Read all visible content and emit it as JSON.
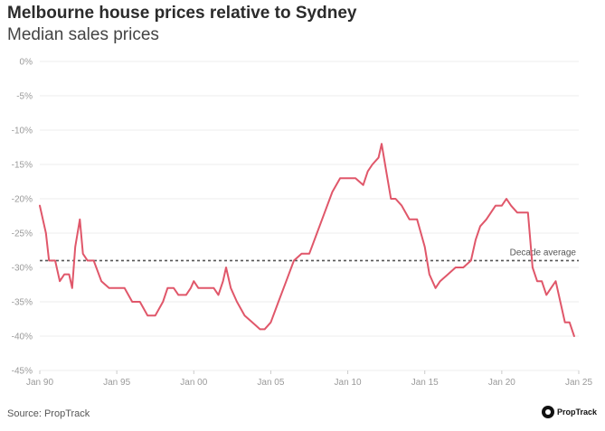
{
  "chart_data": {
    "type": "line",
    "title": "Melbourne house prices relative to Sydney",
    "subtitle": "Median sales prices",
    "xlabel": "",
    "ylabel": "",
    "xlim": [
      1990,
      2025
    ],
    "ylim": [
      -45,
      0
    ],
    "x_ticks": [
      "Jan 90",
      "Jan 95",
      "Jan 00",
      "Jan 05",
      "Jan 10",
      "Jan 15",
      "Jan 20",
      "Jan 25"
    ],
    "y_ticks": [
      "0%",
      "-5%",
      "-10%",
      "-15%",
      "-20%",
      "-25%",
      "-30%",
      "-35%",
      "-40%",
      "-45%"
    ],
    "grid": true,
    "series": [
      {
        "color": "#e0576a",
        "x": [
          1990.0,
          1990.4,
          1990.6,
          1991.0,
          1991.3,
          1991.6,
          1991.9,
          1992.1,
          1992.3,
          1992.6,
          1992.8,
          1993.1,
          1993.5,
          1994.0,
          1994.5,
          1995.0,
          1995.5,
          1996.0,
          1996.5,
          1997.0,
          1997.5,
          1998.0,
          1998.3,
          1998.7,
          1999.0,
          1999.5,
          1999.8,
          2000.0,
          2000.3,
          2000.6,
          2001.0,
          2001.3,
          2001.6,
          2001.9,
          2002.1,
          2002.4,
          2002.8,
          2003.3,
          2003.8,
          2004.3,
          2004.6,
          2005.0,
          2005.5,
          2006.0,
          2006.5,
          2007.0,
          2007.5,
          2008.0,
          2008.5,
          2009.0,
          2009.5,
          2010.0,
          2010.5,
          2011.0,
          2011.3,
          2011.6,
          2012.0,
          2012.2,
          2012.5,
          2012.8,
          2013.1,
          2013.5,
          2014.0,
          2014.5,
          2015.0,
          2015.3,
          2015.7,
          2016.0,
          2016.5,
          2017.0,
          2017.5,
          2018.0,
          2018.3,
          2018.6,
          2019.0,
          2019.3,
          2019.6,
          2020.0,
          2020.3,
          2020.6,
          2021.0,
          2021.3,
          2021.7,
          2022.0,
          2022.3,
          2022.6,
          2022.9,
          2023.2,
          2023.5,
          2023.8,
          2024.1,
          2024.4,
          2024.7
        ],
        "y": [
          -21,
          -25,
          -29,
          -29,
          -32,
          -31,
          -31,
          -33,
          -27,
          -23,
          -28,
          -29,
          -29,
          -32,
          -33,
          -33,
          -33,
          -35,
          -35,
          -37,
          -37,
          -35,
          -33,
          -33,
          -34,
          -34,
          -33,
          -32,
          -33,
          -33,
          -33,
          -33,
          -34,
          -32,
          -30,
          -33,
          -35,
          -37,
          -38,
          -39,
          -39,
          -38,
          -35,
          -32,
          -29,
          -28,
          -28,
          -25,
          -22,
          -19,
          -17,
          -17,
          -17,
          -18,
          -16,
          -15,
          -14,
          -12,
          -16,
          -20,
          -20,
          -21,
          -23,
          -23,
          -27,
          -31,
          -33,
          -32,
          -31,
          -30,
          -30,
          -29,
          -26,
          -24,
          -23,
          -22,
          -21,
          -21,
          -20,
          -21,
          -22,
          -22,
          -22,
          -30,
          -32,
          -32,
          -34,
          -33,
          -32,
          -35,
          -38,
          -38,
          -40
        ],
        "name": ""
      }
    ],
    "reference_line": {
      "value": -29,
      "label": "Decade average"
    }
  },
  "footer": {
    "source": "Source: PropTrack",
    "logo_text": "PropTrack"
  }
}
